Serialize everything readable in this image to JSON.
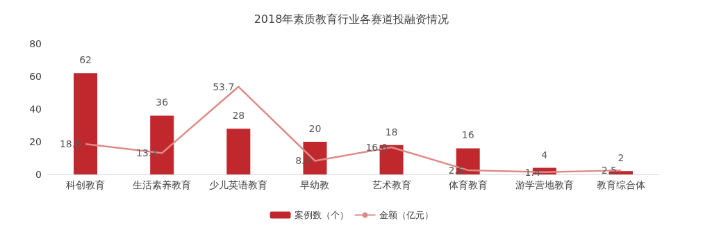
{
  "chart_data": {
    "type": "bar",
    "title": "2018年素质教育行业各赛道投融资情况",
    "categories": [
      "科创教育",
      "生活素养教育",
      "少儿英语教育",
      "早幼教",
      "艺术教育",
      "体育教育",
      "游学营地教育",
      "教育综合体"
    ],
    "series": [
      {
        "name": "案例数（个）",
        "color": "#c0282d",
        "values": [
          62,
          36,
          28,
          20,
          18,
          16,
          4,
          2
        ]
      },
      {
        "name": "金额（亿元）",
        "type": "line",
        "color": "#dc8c88",
        "values": [
          18.6,
          13.1,
          53.7,
          8.3,
          16.6,
          2.6,
          1.4,
          2.5
        ]
      }
    ],
    "ylim": [
      0,
      80
    ],
    "yticks": [
      0,
      20,
      40,
      60,
      80
    ],
    "grid": false,
    "legend": "bottom",
    "data_labels": true,
    "marker": "none"
  }
}
